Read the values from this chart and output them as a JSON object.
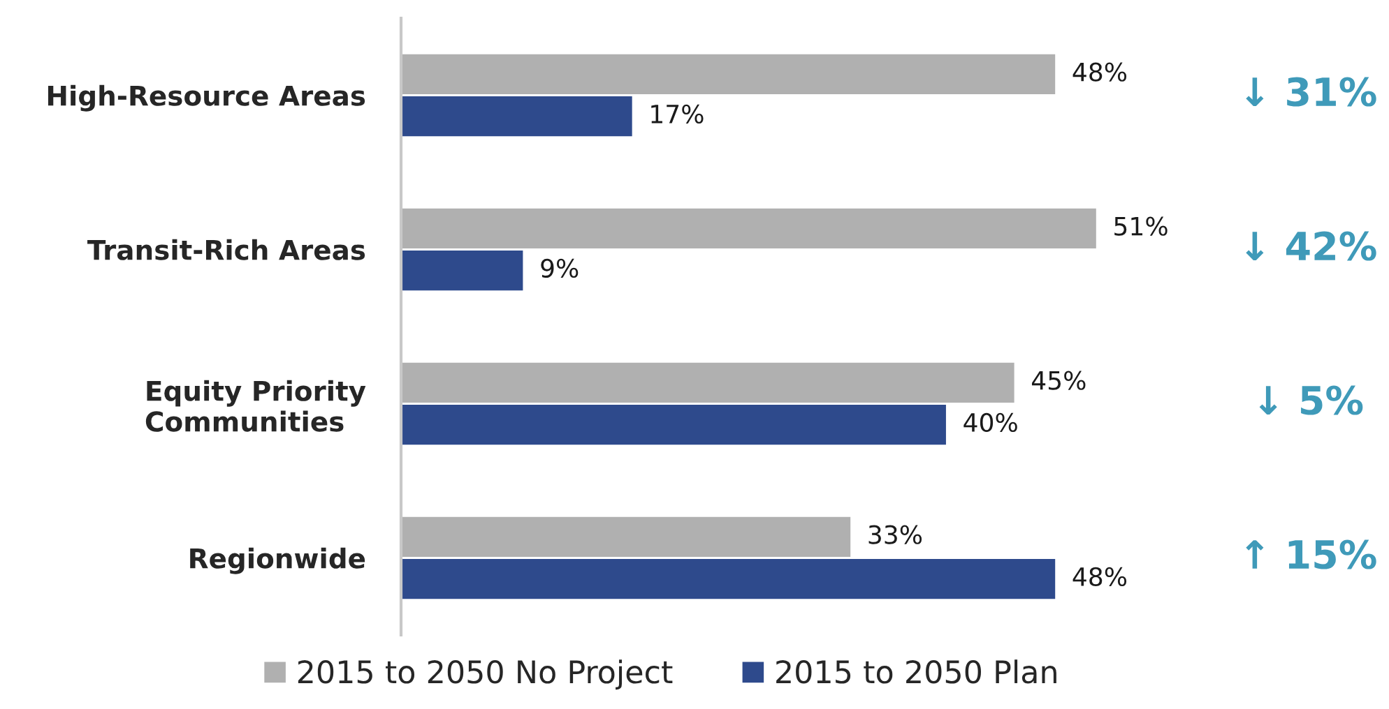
{
  "chart_data": {
    "type": "bar",
    "orientation": "horizontal",
    "categories": [
      "High-Resource Areas",
      "Transit-Rich Areas",
      "Equity Priority\nCommunities",
      "Regionwide"
    ],
    "series": [
      {
        "name": "2015 to 2050 No Project",
        "color": "#b0b0b0",
        "values": [
          48,
          51,
          45,
          33
        ],
        "value_labels": [
          "48%",
          "51%",
          "45%",
          "33%"
        ]
      },
      {
        "name": "2015 to 2050 Plan",
        "color": "#2e4a8c",
        "values": [
          17,
          9,
          40,
          48
        ],
        "value_labels": [
          "17%",
          "9%",
          "40%",
          "48%"
        ]
      }
    ],
    "tick_labels": "y",
    "grid": false,
    "legend": "bottom",
    "annotations": [
      "↓ 31%",
      "↓ 42%",
      "↓ 5%",
      "↑ 15%"
    ]
  }
}
